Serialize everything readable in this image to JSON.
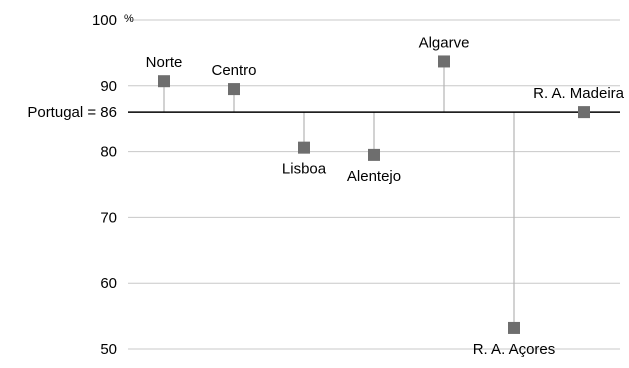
{
  "chart_data": {
    "type": "scatter",
    "title": "",
    "xlabel": "",
    "ylabel": "",
    "y_unit": "%",
    "ylim": [
      50,
      100
    ],
    "y_ticks": [
      50,
      60,
      70,
      80,
      90,
      100
    ],
    "grid": true,
    "reference": {
      "label": "Portugal = 86",
      "value": 86
    },
    "points": [
      {
        "label": "Norte",
        "value": 90.7
      },
      {
        "label": "Centro",
        "value": 89.5
      },
      {
        "label": "Lisboa",
        "value": 80.6
      },
      {
        "label": "Alentejo",
        "value": 79.5
      },
      {
        "label": "Algarve",
        "value": 93.7
      },
      {
        "label": "R. A. Açores",
        "value": 53.2
      },
      {
        "label": "R. A. Madeira",
        "value": 86.0
      }
    ],
    "colors": {
      "marker": "#6e6e6e",
      "stem": "#b5b5b5",
      "grid": "#c8c8c8",
      "reference": "#000000"
    }
  }
}
